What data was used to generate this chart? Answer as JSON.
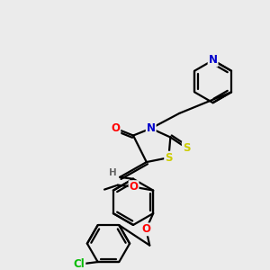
{
  "background_color": "#ebebeb",
  "bond_color": "#000000",
  "atom_colors": {
    "O": "#ff0000",
    "N": "#0000cc",
    "S": "#cccc00",
    "Cl": "#00bb00",
    "H": "#666666",
    "C": "#000000"
  },
  "figsize": [
    3.0,
    3.0
  ],
  "dpi": 100
}
